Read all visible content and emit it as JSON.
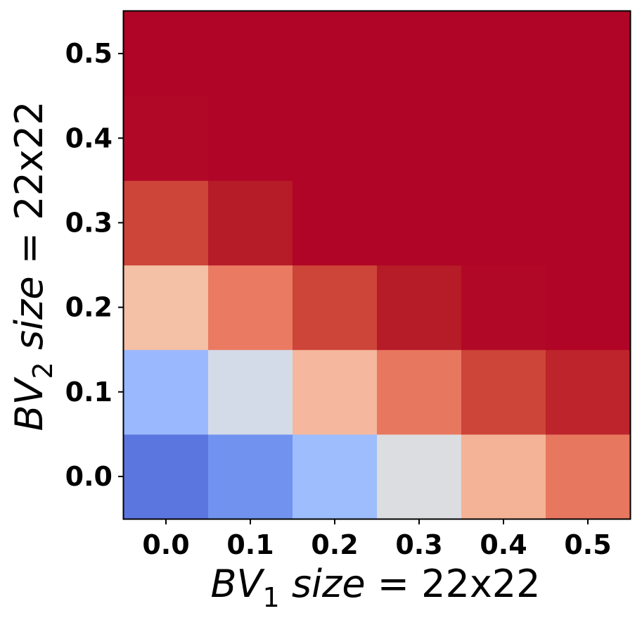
{
  "chart_data": {
    "type": "heatmap",
    "x": [
      "0.0",
      "0.1",
      "0.2",
      "0.3",
      "0.4",
      "0.5"
    ],
    "y": [
      "0.0",
      "0.1",
      "0.2",
      "0.3",
      "0.4",
      "0.5"
    ],
    "xlabel": {
      "base": "BV",
      "sub": "1",
      "rest": " size",
      "eq": " = 22x22"
    },
    "ylabel": {
      "base": "BV",
      "sub": "2",
      "rest": " size",
      "eq": " = 22x22"
    },
    "colormap": "coolwarm",
    "values": [
      [
        0.08,
        0.18,
        0.3,
        0.5,
        0.64,
        0.76
      ],
      [
        0.32,
        0.46,
        0.66,
        0.79,
        0.87,
        0.93
      ],
      [
        0.62,
        0.78,
        0.88,
        0.94,
        0.98,
        1.0
      ],
      [
        0.88,
        0.95,
        0.98,
        1.0,
        1.0,
        1.0
      ],
      [
        0.98,
        1.0,
        1.0,
        1.0,
        1.0,
        1.0
      ],
      [
        1.0,
        1.0,
        1.0,
        1.0,
        1.0,
        1.0
      ]
    ],
    "colors": [
      [
        "#5b76df",
        "#7193ef",
        "#9dbdfc",
        "#dcdde0",
        "#f4b396",
        "#e8775f"
      ],
      [
        "#9ab8fe",
        "#d3dbe8",
        "#f5b89e",
        "#e8775f",
        "#cd4439",
        "#be242b"
      ],
      [
        "#f4c0a6",
        "#ea7a62",
        "#cd4439",
        "#b61b28",
        "#b20827",
        "#b00526"
      ],
      [
        "#cd4439",
        "#b61b28",
        "#b00526",
        "#b00526",
        "#b00526",
        "#b00526"
      ],
      [
        "#b20827",
        "#b00526",
        "#b00526",
        "#b00526",
        "#b00526",
        "#b00526"
      ],
      [
        "#b00526",
        "#b00526",
        "#b00526",
        "#b00526",
        "#b00526",
        "#b00526"
      ]
    ],
    "grid": false,
    "colorbar": false
  }
}
